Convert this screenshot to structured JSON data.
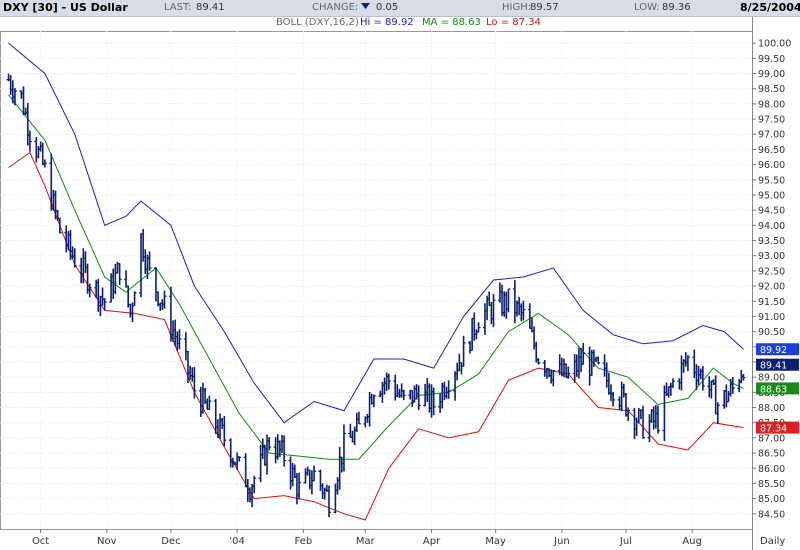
{
  "header": {
    "title": "DXY [30] - US Dollar",
    "last_label": "LAST:",
    "last_value": "89.41",
    "change_label": "CHANGE:",
    "change_value": "0.05",
    "change_direction": "down",
    "high_label": "HIGH:",
    "high_value": "89.57",
    "low_label": "LOW:",
    "low_value": "89.36",
    "date": "8/25/2004",
    "indicator_name": "BOLL (DXY,16,2)",
    "hi_label": "Hi = 89.92",
    "ma_label": "MA = 88.63",
    "lo_label": "Lo = 87.34"
  },
  "chart_data": {
    "type": "line",
    "title": "DXY [30] - US Dollar",
    "period": "Daily",
    "indicator": "Bollinger Bands (16,2)",
    "ylim": [
      84.0,
      100.4
    ],
    "y_ticks": [
      "100.00",
      "99.50",
      "99.00",
      "98.50",
      "98.00",
      "97.50",
      "97.00",
      "96.50",
      "96.00",
      "95.50",
      "95.00",
      "94.50",
      "94.00",
      "93.50",
      "93.00",
      "92.50",
      "92.00",
      "91.50",
      "91.00",
      "90.50",
      "90.00",
      "89.50",
      "89.00",
      "88.50",
      "88.00",
      "87.50",
      "87.00",
      "86.50",
      "86.00",
      "85.50",
      "85.00",
      "84.50"
    ],
    "x_labels": [
      "Oct",
      "Nov",
      "Dec",
      "'04",
      "Feb",
      "Mar",
      "Apr",
      "May",
      "Jun",
      "Jul",
      "Aug",
      "Daily"
    ],
    "grid": true,
    "colors": {
      "price": "#0b1f6e",
      "upper": "#1f1fbf",
      "middle": "#118811",
      "lower": "#dd1111",
      "hi_tag": "#1f3ee0",
      "ma_tag": "#1a8a1a",
      "lo_tag": "#e02020",
      "last_tag": "#0b1f6e"
    },
    "current": {
      "hi": "89.92",
      "last": "89.41",
      "ma": "88.63",
      "lo": "87.34"
    },
    "series": [
      {
        "name": "Price",
        "points": [
          [
            "Sep 16 2003",
            98.8
          ],
          [
            "Sep 22 2003",
            98.2
          ],
          [
            "Sep 26 2003",
            97.1
          ],
          [
            "Oct 3 2003",
            95.8
          ],
          [
            "Oct 10 2003",
            93.8
          ],
          [
            "Oct 17 2003",
            92.9
          ],
          [
            "Oct 24 2003",
            92.2
          ],
          [
            "Oct 31 2003",
            91.5
          ],
          [
            "Nov 7 2003",
            92.6
          ],
          [
            "Nov 12 2003",
            91.1
          ],
          [
            "Nov 17 2003",
            93.6
          ],
          [
            "Nov 21 2003",
            92.4
          ],
          [
            "Nov 28 2003",
            91.3
          ],
          [
            "Dec 5 2003",
            90.0
          ],
          [
            "Dec 12 2003",
            88.6
          ],
          [
            "Dec 19 2003",
            87.8
          ],
          [
            "Dec 26 2003",
            87.0
          ],
          [
            "Jan 2 2004",
            86.0
          ],
          [
            "Jan 7 2004",
            85.4
          ],
          [
            "Jan 12 2004",
            86.1
          ],
          [
            "Jan 16 2004",
            86.9
          ],
          [
            "Jan 23 2004",
            86.4
          ],
          [
            "Jan 30 2004",
            85.3
          ],
          [
            "Feb 6 2004",
            85.8
          ],
          [
            "Feb 13 2004",
            85.0
          ],
          [
            "Feb 20 2004",
            86.7
          ],
          [
            "Feb 27 2004",
            87.3
          ],
          [
            "Mar 5 2004",
            88.7
          ],
          [
            "Mar 12 2004",
            88.9
          ],
          [
            "Mar 19 2004",
            88.2
          ],
          [
            "Mar 26 2004",
            88.5
          ],
          [
            "Apr 2 2004",
            88.1
          ],
          [
            "Apr 9 2004",
            89.0
          ],
          [
            "Apr 16 2004",
            89.8
          ],
          [
            "Apr 23 2004",
            91.0
          ],
          [
            "Apr 30 2004",
            91.3
          ],
          [
            "May 7 2004",
            91.5
          ],
          [
            "May 14 2004",
            91.0
          ],
          [
            "May 21 2004",
            89.7
          ],
          [
            "May 28 2004",
            89.2
          ],
          [
            "Jun 4 2004",
            89.0
          ],
          [
            "Jun 11 2004",
            89.6
          ],
          [
            "Jun 18 2004",
            89.2
          ],
          [
            "Jun 25 2004",
            88.7
          ],
          [
            "Jul 2 2004",
            88.0
          ],
          [
            "Jul 9 2004",
            87.4
          ],
          [
            "Jul 16 2004",
            87.6
          ],
          [
            "Jul 23 2004",
            88.8
          ],
          [
            "Jul 30 2004",
            89.6
          ],
          [
            "Aug 6 2004",
            89.0
          ],
          [
            "Aug 13 2004",
            88.1
          ],
          [
            "Aug 20 2004",
            88.6
          ],
          [
            "Aug 25 2004",
            89.41
          ]
        ]
      },
      {
        "name": "Hi",
        "points": [
          [
            "Sep 16 2003",
            100.0
          ],
          [
            "Oct 3 2003",
            99.0
          ],
          [
            "Oct 17 2003",
            97.0
          ],
          [
            "Oct 31 2003",
            94.0
          ],
          [
            "Nov 10 2003",
            94.3
          ],
          [
            "Nov 17 2003",
            94.8
          ],
          [
            "Dec 1 2003",
            94.0
          ],
          [
            "Dec 12 2003",
            92.0
          ],
          [
            "Dec 26 2003",
            90.5
          ],
          [
            "Jan 9 2004",
            88.8
          ],
          [
            "Jan 23 2004",
            87.5
          ],
          [
            "Feb 6 2004",
            88.2
          ],
          [
            "Feb 20 2004",
            87.9
          ],
          [
            "Mar 5 2004",
            89.6
          ],
          [
            "Mar 19 2004",
            89.6
          ],
          [
            "Apr 2 2004",
            89.3
          ],
          [
            "Apr 16 2004",
            91.0
          ],
          [
            "Apr 30 2004",
            92.2
          ],
          [
            "May 14 2004",
            92.3
          ],
          [
            "May 28 2004",
            92.6
          ],
          [
            "Jun 11 2004",
            91.2
          ],
          [
            "Jun 25 2004",
            90.4
          ],
          [
            "Jul 9 2004",
            90.1
          ],
          [
            "Jul 23 2004",
            90.2
          ],
          [
            "Aug 6 2004",
            90.7
          ],
          [
            "Aug 16 2004",
            90.5
          ],
          [
            "Aug 25 2004",
            89.92
          ]
        ]
      },
      {
        "name": "MA",
        "points": [
          [
            "Sep 16 2003",
            98.3
          ],
          [
            "Oct 3 2003",
            96.8
          ],
          [
            "Oct 17 2003",
            94.5
          ],
          [
            "Oct 31 2003",
            92.3
          ],
          [
            "Nov 10 2003",
            91.8
          ],
          [
            "Nov 24 2003",
            92.6
          ],
          [
            "Dec 5 2003",
            91.4
          ],
          [
            "Dec 19 2003",
            89.6
          ],
          [
            "Jan 2 2004",
            87.8
          ],
          [
            "Jan 16 2004",
            86.5
          ],
          [
            "Jan 30 2004",
            86.4
          ],
          [
            "Feb 13 2004",
            86.3
          ],
          [
            "Feb 27 2004",
            86.3
          ],
          [
            "Mar 12 2004",
            87.4
          ],
          [
            "Mar 26 2004",
            88.4
          ],
          [
            "Apr 9 2004",
            88.5
          ],
          [
            "Apr 23 2004",
            89.1
          ],
          [
            "May 7 2004",
            90.5
          ],
          [
            "May 21 2004",
            91.1
          ],
          [
            "Jun 4 2004",
            90.4
          ],
          [
            "Jun 18 2004",
            89.3
          ],
          [
            "Jul 2 2004",
            89.0
          ],
          [
            "Jul 16 2004",
            88.1
          ],
          [
            "Jul 30 2004",
            88.3
          ],
          [
            "Aug 11 2004",
            89.3
          ],
          [
            "Aug 20 2004",
            88.8
          ],
          [
            "Aug 25 2004",
            88.63
          ]
        ]
      },
      {
        "name": "Lo",
        "points": [
          [
            "Sep 16 2003",
            95.9
          ],
          [
            "Sep 26 2003",
            96.4
          ],
          [
            "Oct 3 2003",
            95.3
          ],
          [
            "Oct 17 2003",
            92.7
          ],
          [
            "Oct 31 2003",
            91.2
          ],
          [
            "Nov 14 2003",
            91.1
          ],
          [
            "Nov 28 2003",
            90.9
          ],
          [
            "Dec 12 2003",
            88.5
          ],
          [
            "Dec 26 2003",
            86.7
          ],
          [
            "Jan 9 2004",
            85.0
          ],
          [
            "Jan 23 2004",
            85.1
          ],
          [
            "Feb 6 2004",
            84.9
          ],
          [
            "Feb 20 2004",
            84.5
          ],
          [
            "Mar 1 2004",
            84.3
          ],
          [
            "Mar 12 2004",
            86.0
          ],
          [
            "Mar 26 2004",
            87.3
          ],
          [
            "Apr 9 2004",
            87.0
          ],
          [
            "Apr 23 2004",
            87.2
          ],
          [
            "May 7 2004",
            88.9
          ],
          [
            "May 21 2004",
            89.3
          ],
          [
            "Jun 4 2004",
            89.1
          ],
          [
            "Jun 18 2004",
            88.0
          ],
          [
            "Jul 2 2004",
            87.9
          ],
          [
            "Jul 16 2004",
            86.8
          ],
          [
            "Jul 30 2004",
            86.6
          ],
          [
            "Aug 11 2004",
            87.5
          ],
          [
            "Aug 25 2004",
            87.34
          ]
        ]
      }
    ]
  }
}
